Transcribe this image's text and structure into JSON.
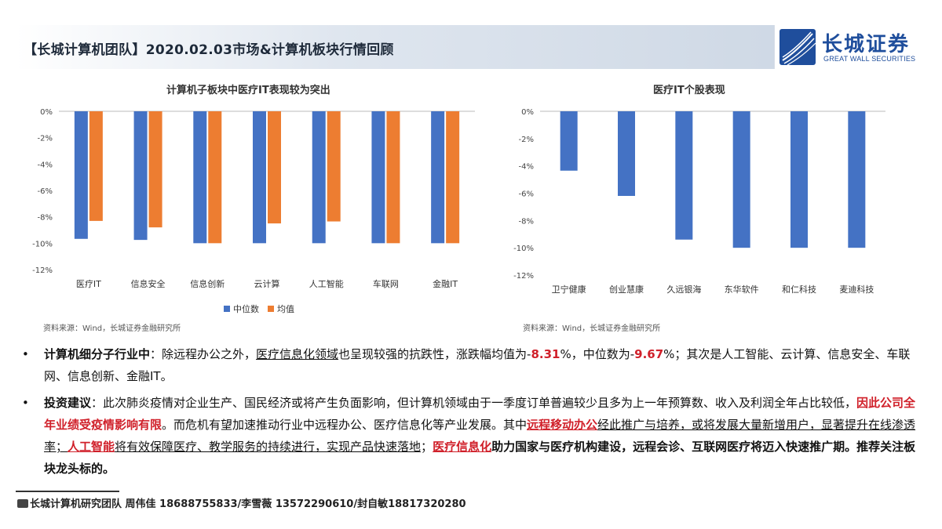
{
  "header": {
    "title": "【长城计算机团队】2020.02.03市场&计算机板块行情回顾",
    "logo_cn": "长城证券",
    "logo_en": "GREAT WALL SECURITIES"
  },
  "colors": {
    "median": "#4472c4",
    "mean": "#ed7d31",
    "accent_red": "#d0202a",
    "brand": "#1f4e9c"
  },
  "chart_data": [
    {
      "type": "bar",
      "title": "计算机子板块中医疗IT表现较为突出",
      "categories": [
        "医疗IT",
        "信息安全",
        "信息创新",
        "云计算",
        "人工智能",
        "车联网",
        "金融IT"
      ],
      "series": [
        {
          "name": "中位数",
          "values": [
            -9.67,
            -9.75,
            -10.0,
            -10.0,
            -10.0,
            -10.0,
            -10.0
          ]
        },
        {
          "name": "均值",
          "values": [
            -8.31,
            -8.8,
            -10.0,
            -8.5,
            -8.35,
            -10.0,
            -10.0
          ]
        }
      ],
      "ylim": [
        -12,
        0
      ],
      "yticks": [
        "0%",
        "-2%",
        "-4%",
        "-6%",
        "-8%",
        "-10%",
        "-12%"
      ],
      "legend": "bottom",
      "source": "资料来源：Wind，长城证券金融研究所"
    },
    {
      "type": "bar",
      "title": "医疗IT个股表现",
      "categories": [
        "卫宁健康",
        "创业慧康",
        "久远银海",
        "东华软件",
        "和仁科技",
        "麦迪科技"
      ],
      "series": [
        {
          "values": [
            -4.35,
            -6.2,
            -9.4,
            -10.0,
            -10.0,
            -10.0
          ]
        }
      ],
      "ylim": [
        -12,
        0
      ],
      "yticks": [
        "0%",
        "-2%",
        "-4%",
        "-6%",
        "-8%",
        "-10%",
        "-12%"
      ],
      "source": "资料来源：Wind，长城证券金融研究所"
    }
  ],
  "bullets": {
    "b1": {
      "lead": "计算机细分子行业中",
      "t1": "：除远程办公之外，",
      "t2": "医疗信息化领域",
      "t3": "也呈现较强的抗跌性，涨跌幅均值为-",
      "v1": "8.31",
      "t4": "%，中位数为-",
      "v2": "9.67",
      "t5": "%；其次是人工智能、云计算、信息安全、车联网、信息创新、金融IT。"
    },
    "b2": {
      "lead": "投资建议",
      "t1": "：此次肺炎疫情对企业生产、国民经济或将产生负面影响，但计算机领域由于一季度订单普遍较少且多为上一年预算数、收入及利润全年占比较低，",
      "r1": "因此公司全年业绩受疫情影响有限",
      "t2": "。而危机有望加速推动行业中远程办公、医疗信息化等产业发展。其中",
      "r2": "远程移动办公",
      "t3": "经此推广与培养，或将发展大量新增用户，显著提升在线渗透率；",
      "r3": "人工智能",
      "t4": "将有效保障医疗、教学服务的持续进行，实现产品快速落地",
      "t5": "；",
      "r4": "医疗信息化",
      "t6": "助力国家与医疗机构建设，远程会诊、互联网医疗将迈入快速推广期。推荐关注板块龙头标的。"
    }
  },
  "footer": {
    "team": "长城计算机研究团队 周伟佳 18688755833/李雪薇 13572290610/封自敏18817320280"
  }
}
